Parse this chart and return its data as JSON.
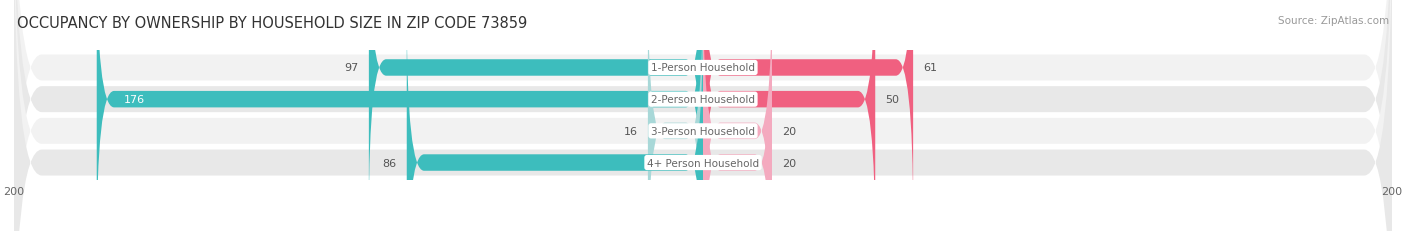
{
  "title": "OCCUPANCY BY OWNERSHIP BY HOUSEHOLD SIZE IN ZIP CODE 73859",
  "source": "Source: ZipAtlas.com",
  "categories": [
    "1-Person Household",
    "2-Person Household",
    "3-Person Household",
    "4+ Person Household"
  ],
  "owner_values": [
    97,
    176,
    16,
    86
  ],
  "renter_values": [
    61,
    50,
    20,
    20
  ],
  "owner_colors": [
    "#3DBDBD",
    "#3DBDBD",
    "#A8D8D8",
    "#3DBDBD"
  ],
  "renter_colors": [
    "#F06080",
    "#F06080",
    "#F4AABF",
    "#F4AABF"
  ],
  "row_bg_colors": [
    "#F2F2F2",
    "#E8E8E8",
    "#F2F2F2",
    "#E8E8E8"
  ],
  "max_val": 200,
  "title_fontsize": 10.5,
  "source_fontsize": 7.5,
  "value_fontsize": 8,
  "cat_fontsize": 7.5,
  "tick_fontsize": 8,
  "legend_fontsize": 8,
  "background_color": "#FFFFFF",
  "value_color": "#555555",
  "owner_label_color": "#FFFFFF",
  "cat_label_color": "#666666"
}
